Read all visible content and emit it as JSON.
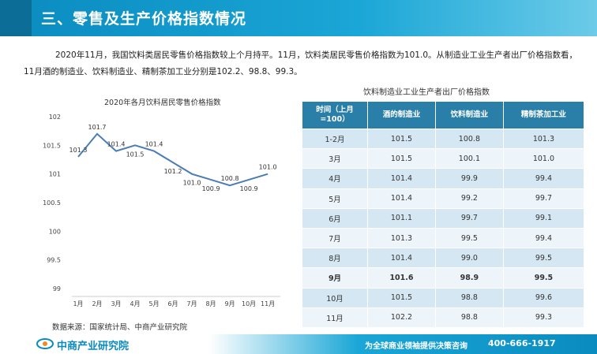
{
  "header": {
    "title": "三、零售及生产价格指数情况"
  },
  "intro": {
    "text": "2020年11月，我国饮料类居民零售价格指数较上个月持平。11月，饮料类居民零售价格指数为101.0。从制造业工业生产者出厂价格指数看，11月酒的制造业、饮料制造业、精制茶加工业分别是102.2、98.8、99.3。"
  },
  "chart_data": {
    "type": "line",
    "title": "2020年各月饮料居民零售价格指数",
    "categories": [
      "1月",
      "2月",
      "3月",
      "4月",
      "5月",
      "6月",
      "7月",
      "8月",
      "9月",
      "10月",
      "11月"
    ],
    "values": [
      101.3,
      101.7,
      101.4,
      101.5,
      101.4,
      101.2,
      101.0,
      100.9,
      100.8,
      100.9,
      101.0
    ],
    "labels": [
      "101.3",
      "101.7",
      "101.4",
      "101.5",
      "101.4",
      "101.2",
      "101.0",
      "100.9",
      "100.8",
      "100.9",
      "101.0"
    ],
    "yticks": [
      "99",
      "99.5",
      "100",
      "100.5",
      "101",
      "101.5",
      "102"
    ],
    "ylim": [
      99,
      102
    ],
    "color": "#4a7db5"
  },
  "table": {
    "title": "饮料制造业工业生产者出厂价格指数",
    "headers": [
      "时间（上月=100）",
      "酒的制造业",
      "饮料制造业",
      "精制茶加工业"
    ],
    "rows": [
      [
        "1-2月",
        "101.5",
        "100.8",
        "101.3"
      ],
      [
        "3月",
        "101.5",
        "100.1",
        "101.0"
      ],
      [
        "4月",
        "101.4",
        "99.9",
        "99.4"
      ],
      [
        "5月",
        "101.4",
        "99.2",
        "99.7"
      ],
      [
        "6月",
        "101.1",
        "99.7",
        "99.1"
      ],
      [
        "7月",
        "101.3",
        "99.5",
        "99.4"
      ],
      [
        "8月",
        "101.4",
        "99.0",
        "99.5"
      ],
      [
        "9月",
        "101.6",
        "98.9",
        "99.5"
      ],
      [
        "10月",
        "101.5",
        "98.8",
        "99.6"
      ],
      [
        "11月",
        "102.2",
        "98.8",
        "99.3"
      ]
    ]
  },
  "source": {
    "text": "数据来源：国家统计局、中商产业研究院"
  },
  "footer": {
    "logo": "中商产业研究院",
    "slogan": "为全球商业领袖提供决策咨询",
    "phone": "400-666-1917"
  }
}
